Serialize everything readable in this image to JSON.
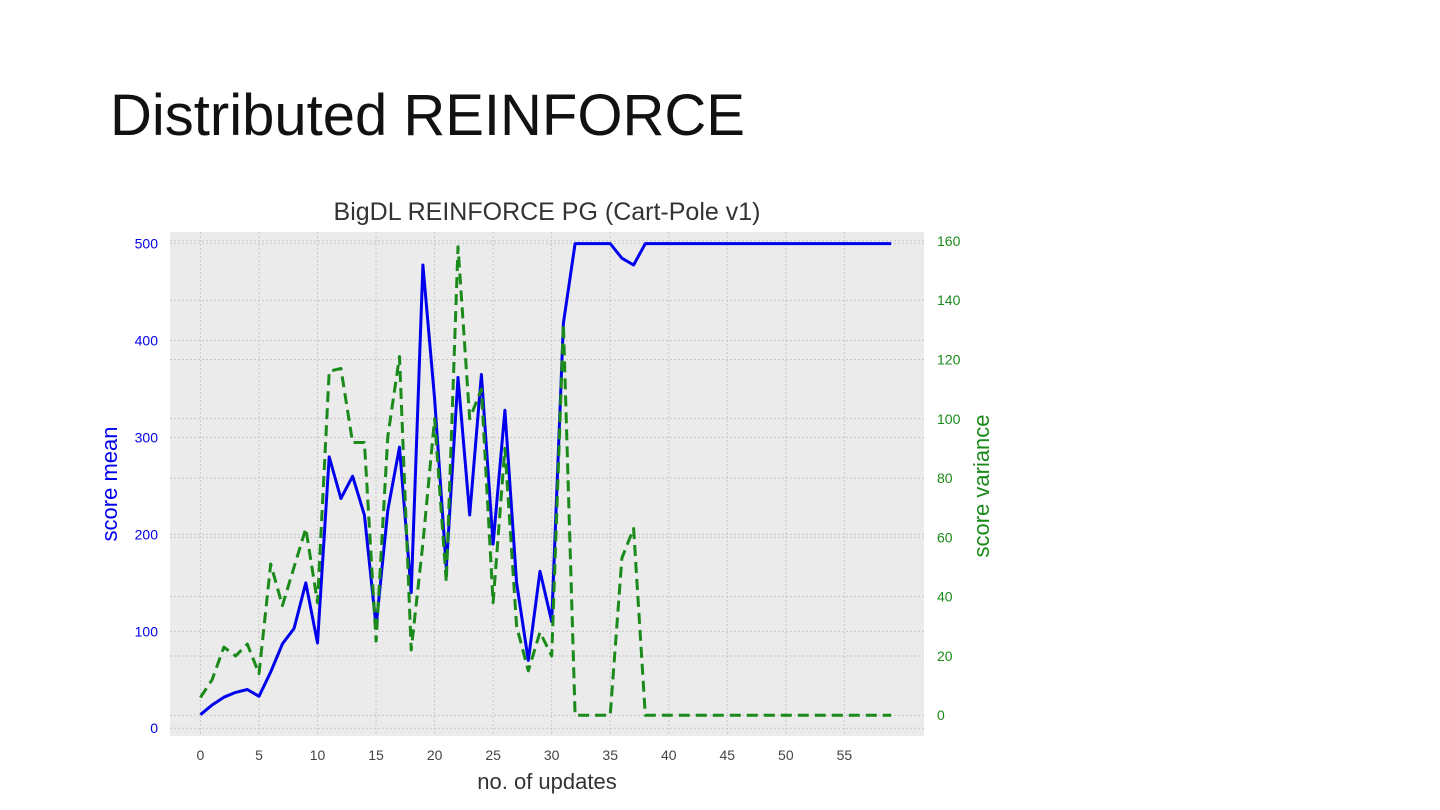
{
  "slide": {
    "title": "Distributed REINFORCE"
  },
  "colors": {
    "mean": "#0000ee",
    "variance": "#1a8a1a",
    "plot_bg": "#ebebeb",
    "grid": "#c8c8c8"
  },
  "chart_data": {
    "type": "line",
    "title": "BigDL REINFORCE PG (Cart-Pole v1)",
    "xlabel": "no. of updates",
    "ylabel": "score mean",
    "y2label": "score variance",
    "xlim": [
      -2.6,
      61.8
    ],
    "ylim": [
      -8,
      512
    ],
    "y2lim": [
      -7,
      163
    ],
    "x_ticks": [
      0,
      5,
      10,
      15,
      20,
      25,
      30,
      35,
      40,
      45,
      50,
      55
    ],
    "y_ticks": [
      0,
      100,
      200,
      300,
      400,
      500
    ],
    "y2_ticks": [
      0,
      20,
      40,
      60,
      80,
      100,
      120,
      140,
      160
    ],
    "grid": true,
    "series": [
      {
        "name": "score mean",
        "axis": "left",
        "style": "solid",
        "x": [
          0,
          1,
          2,
          3,
          4,
          5,
          6,
          7,
          8,
          9,
          10,
          11,
          12,
          13,
          14,
          15,
          16,
          17,
          18,
          19,
          20,
          21,
          22,
          23,
          24,
          25,
          26,
          27,
          28,
          29,
          30,
          31,
          32,
          33,
          34,
          35,
          36,
          37,
          38,
          39,
          40,
          41,
          42,
          43,
          44,
          45,
          46,
          47,
          48,
          49,
          50,
          51,
          52,
          53,
          54,
          55,
          56,
          57,
          58,
          59
        ],
        "values": [
          14,
          24,
          32,
          37,
          40,
          33,
          58,
          87,
          103,
          150,
          88,
          280,
          237,
          260,
          220,
          105,
          225,
          290,
          140,
          478,
          340,
          165,
          362,
          220,
          365,
          190,
          328,
          150,
          70,
          162,
          110,
          418,
          500,
          500,
          500,
          500,
          485,
          478,
          500,
          500,
          500,
          500,
          500,
          500,
          500,
          500,
          500,
          500,
          500,
          500,
          500,
          500,
          500,
          500,
          500,
          500,
          500,
          500,
          500,
          500
        ]
      },
      {
        "name": "score variance",
        "axis": "right",
        "style": "dashed",
        "x": [
          0,
          1,
          2,
          3,
          4,
          5,
          6,
          7,
          8,
          9,
          10,
          11,
          12,
          13,
          14,
          15,
          16,
          17,
          18,
          19,
          20,
          21,
          22,
          23,
          24,
          25,
          26,
          27,
          28,
          29,
          30,
          31,
          32,
          33,
          34,
          35,
          36,
          37,
          38,
          39,
          40,
          41,
          42,
          43,
          44,
          45,
          46,
          47,
          48,
          49,
          50,
          51,
          52,
          53,
          54,
          55,
          56,
          57,
          58,
          59
        ],
        "values": [
          6,
          12,
          23,
          20,
          24,
          14,
          51,
          37,
          50,
          63,
          38,
          116,
          117,
          92,
          92,
          25,
          94,
          121,
          22,
          58,
          100,
          45,
          158,
          100,
          110,
          38,
          90,
          30,
          15,
          28,
          20,
          132,
          0,
          0,
          0,
          0,
          53,
          63,
          0,
          0,
          0,
          0,
          0,
          0,
          0,
          0,
          0,
          0,
          0,
          0,
          0,
          0,
          0,
          0,
          0,
          0,
          0,
          0,
          0,
          0
        ]
      }
    ]
  }
}
